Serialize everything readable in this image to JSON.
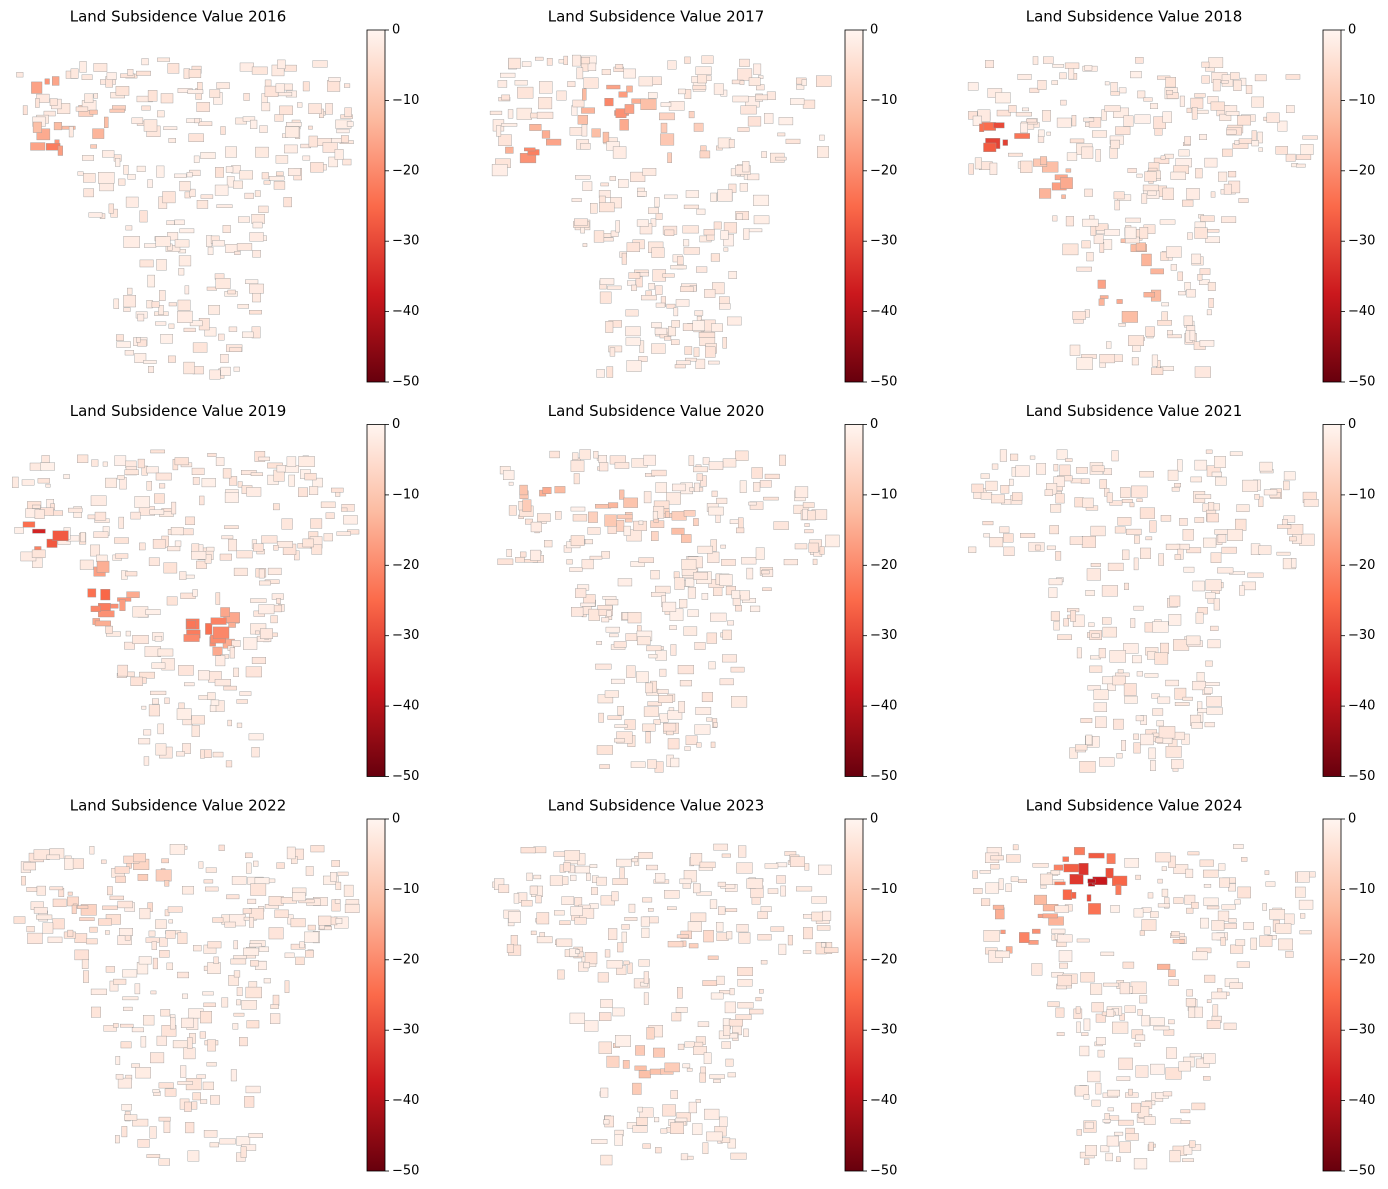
{
  "panels": [
    {
      "title": "Land Subsidence Value 2016",
      "colorbar": {
        "lim": [
          -50,
          0
        ],
        "ticks": [
          0,
          {
            "value": -10,
            "label": "−10"
          },
          {
            "value": -20,
            "label": "−20"
          },
          {
            "value": -30,
            "label": "−30"
          },
          {
            "value": -40,
            "label": "−40"
          },
          {
            "value": -50,
            "label": "−50"
          }
        ],
        "colors": [
          "#67000d",
          "#cb181d",
          "#fb6a4a",
          "#fcbba1",
          "#fff5f0"
        ]
      }
    },
    {
      "title": "Land Subsidence Value 2017",
      "colorbar": {
        "lim": [
          -50,
          0
        ],
        "ticks": [
          0,
          {
            "value": -10,
            "label": "−10"
          },
          {
            "value": -20,
            "label": "−20"
          },
          {
            "value": -30,
            "label": "−30"
          },
          {
            "value": -40,
            "label": "−40"
          },
          {
            "value": -50,
            "label": "−50"
          }
        ],
        "colors": [
          "#67000d",
          "#cb181d",
          "#fb6a4a",
          "#fcbba1",
          "#fff5f0"
        ]
      }
    },
    {
      "title": "Land Subsidence Value 2018",
      "colorbar": {
        "lim": [
          -50,
          0
        ],
        "ticks": [
          0,
          {
            "value": -10,
            "label": "−10"
          },
          {
            "value": -20,
            "label": "−20"
          },
          {
            "value": -30,
            "label": "−30"
          },
          {
            "value": -40,
            "label": "−40"
          },
          {
            "value": -50,
            "label": "−50"
          }
        ],
        "colors": [
          "#67000d",
          "#cb181d",
          "#fb6a4a",
          "#fcbba1",
          "#fff5f0"
        ]
      }
    },
    {
      "title": "Land Subsidence Value 2019",
      "colorbar": {
        "lim": [
          -50,
          0
        ],
        "ticks": [
          0,
          {
            "value": -10,
            "label": "−10"
          },
          {
            "value": -20,
            "label": "−20"
          },
          {
            "value": -30,
            "label": "−30"
          },
          {
            "value": -40,
            "label": "−40"
          },
          {
            "value": -50,
            "label": "−50"
          }
        ],
        "colors": [
          "#67000d",
          "#cb181d",
          "#fb6a4a",
          "#fcbba1",
          "#fff5f0"
        ]
      }
    },
    {
      "title": "Land Subsidence Value 2020",
      "colorbar": {
        "lim": [
          -50,
          0
        ],
        "ticks": [
          0,
          {
            "value": -10,
            "label": "−10"
          },
          {
            "value": -20,
            "label": "−20"
          },
          {
            "value": -30,
            "label": "−30"
          },
          {
            "value": -40,
            "label": "−40"
          },
          {
            "value": -50,
            "label": "−50"
          }
        ],
        "colors": [
          "#67000d",
          "#cb181d",
          "#fb6a4a",
          "#fcbba1",
          "#fff5f0"
        ]
      }
    },
    {
      "title": "Land Subsidence Value 2021",
      "colorbar": {
        "lim": [
          -50,
          0
        ],
        "ticks": [
          0,
          {
            "value": -10,
            "label": "−10"
          },
          {
            "value": -20,
            "label": "−20"
          },
          {
            "value": -30,
            "label": "−30"
          },
          {
            "value": -40,
            "label": "−40"
          },
          {
            "value": -50,
            "label": "−50"
          }
        ],
        "colors": [
          "#67000d",
          "#cb181d",
          "#fb6a4a",
          "#fcbba1",
          "#fff5f0"
        ]
      }
    },
    {
      "title": "Land Subsidence Value 2022",
      "colorbar": {
        "lim": [
          -50,
          0
        ],
        "ticks": [
          0,
          {
            "value": -10,
            "label": "−10"
          },
          {
            "value": -20,
            "label": "−20"
          },
          {
            "value": -30,
            "label": "−30"
          },
          {
            "value": -40,
            "label": "−40"
          },
          {
            "value": -50,
            "label": "−50"
          }
        ],
        "colors": [
          "#67000d",
          "#cb181d",
          "#fb6a4a",
          "#fcbba1",
          "#fff5f0"
        ]
      }
    },
    {
      "title": "Land Subsidence Value 2023",
      "colorbar": {
        "lim": [
          -50,
          0
        ],
        "ticks": [
          0,
          {
            "value": -10,
            "label": "−10"
          },
          {
            "value": -20,
            "label": "−20"
          },
          {
            "value": -30,
            "label": "−30"
          },
          {
            "value": -40,
            "label": "−40"
          },
          {
            "value": -50,
            "label": "−50"
          }
        ],
        "colors": [
          "#67000d",
          "#cb181d",
          "#fb6a4a",
          "#fcbba1",
          "#fff5f0"
        ]
      }
    },
    {
      "title": "Land Subsidence Value 2024",
      "colorbar": {
        "lim": [
          -50,
          0
        ],
        "ticks": [
          0,
          {
            "value": -10,
            "label": "−10"
          },
          {
            "value": -20,
            "label": "−20"
          },
          {
            "value": -30,
            "label": "−30"
          },
          {
            "value": -40,
            "label": "−40"
          },
          {
            "value": -50,
            "label": "−50"
          }
        ],
        "colors": [
          "#67000d",
          "#cb181d",
          "#fb6a4a",
          "#fcbba1",
          "#fff5f0"
        ]
      }
    }
  ]
}
